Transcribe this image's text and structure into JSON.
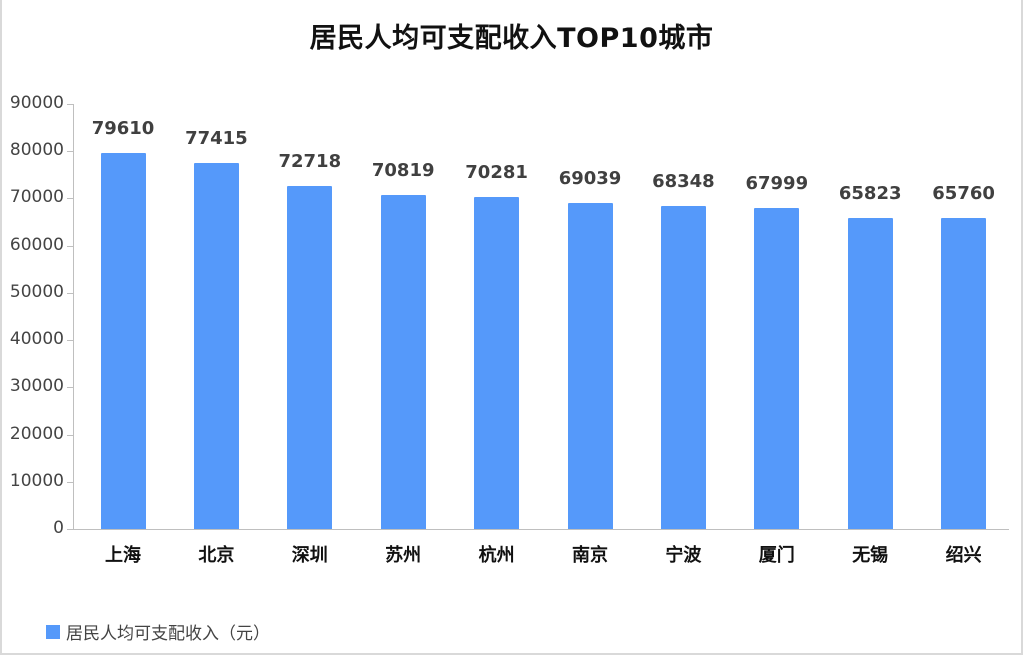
{
  "chart_data": {
    "type": "bar",
    "title": "居民人均可支配收入TOP10城市",
    "categories": [
      "上海",
      "北京",
      "深圳",
      "苏州",
      "杭州",
      "南京",
      "宁波",
      "厦门",
      "无锡",
      "绍兴"
    ],
    "series": [
      {
        "name": "居民人均可支配收入（元）",
        "color": "#5599fa",
        "values": [
          79610,
          77415,
          72718,
          70819,
          70281,
          69039,
          68348,
          67999,
          65823,
          65760
        ]
      }
    ],
    "xlabel": "",
    "ylabel": "",
    "ylim": [
      0,
      90000
    ],
    "yticks": [
      0,
      10000,
      20000,
      30000,
      40000,
      50000,
      60000,
      70000,
      80000,
      90000
    ],
    "data_labels": true,
    "grid": false,
    "legend_position": "bottom-left"
  },
  "labels": {
    "title": "居民人均可支配收入TOP10城市",
    "legend": "居民人均可支配收入（元）",
    "yticks": [
      "90000",
      "80000",
      "70000",
      "60000",
      "50000",
      "40000",
      "30000",
      "20000",
      "10000",
      "0"
    ],
    "values": [
      "79610",
      "77415",
      "72718",
      "70819",
      "70281",
      "69039",
      "68348",
      "67999",
      "65823",
      "65760"
    ],
    "categories": [
      "上海",
      "北京",
      "深圳",
      "苏州",
      "杭州",
      "南京",
      "宁波",
      "厦门",
      "无锡",
      "绍兴"
    ]
  }
}
